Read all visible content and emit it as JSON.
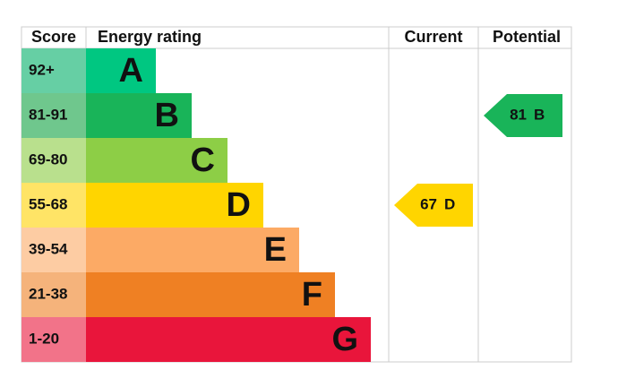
{
  "header": {
    "score": "Score",
    "rating": "Energy rating",
    "current": "Current",
    "potential": "Potential"
  },
  "bands": [
    {
      "score": "92+",
      "letter": "A",
      "color": "#00c781",
      "score_color": "#66cfa4"
    },
    {
      "score": "81-91",
      "letter": "B",
      "color": "#19b459",
      "score_color": "#6fc78d"
    },
    {
      "score": "69-80",
      "letter": "C",
      "color": "#8dce46",
      "score_color": "#b9e08d"
    },
    {
      "score": "55-68",
      "letter": "D",
      "color": "#ffd500",
      "score_color": "#ffe466"
    },
    {
      "score": "39-54",
      "letter": "E",
      "color": "#fcaa65",
      "score_color": "#fdcca3"
    },
    {
      "score": "21-38",
      "letter": "F",
      "color": "#ef8023",
      "score_color": "#f5b37b"
    },
    {
      "score": "1-20",
      "letter": "G",
      "color": "#e9153b",
      "score_color": "#f27389"
    }
  ],
  "current": {
    "score": 67,
    "rating": "D"
  },
  "potential": {
    "score": 81,
    "rating": "B"
  }
}
